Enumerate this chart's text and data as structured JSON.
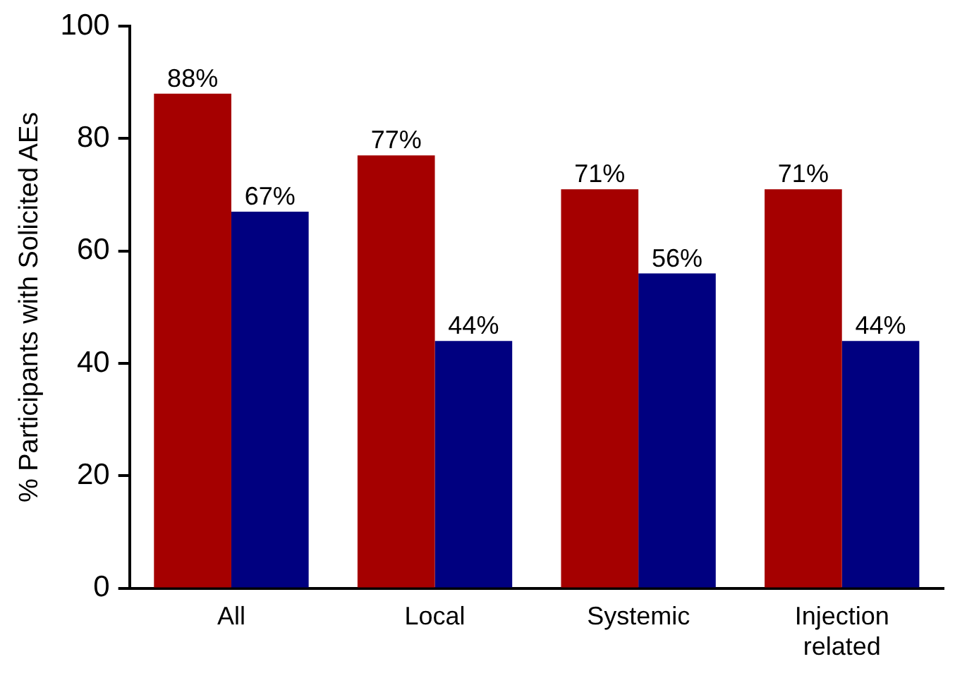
{
  "chart_data": {
    "type": "bar",
    "ylabel": "% Participants with Solicited AEs",
    "categories": [
      "All",
      "Local",
      "Systemic",
      "Injection related"
    ],
    "series": [
      {
        "color": "#a50000",
        "values": [
          88,
          77,
          71,
          71
        ],
        "value_labels": [
          "88%",
          "77%",
          "71%",
          "71%"
        ]
      },
      {
        "color": "#000080",
        "values": [
          67,
          44,
          56,
          44
        ],
        "value_labels": [
          "67%",
          "44%",
          "56%",
          "44%"
        ]
      }
    ],
    "ylim": [
      0,
      100
    ],
    "yticks": [
      0,
      20,
      40,
      60,
      80,
      100
    ],
    "grid": false,
    "legend": false
  }
}
